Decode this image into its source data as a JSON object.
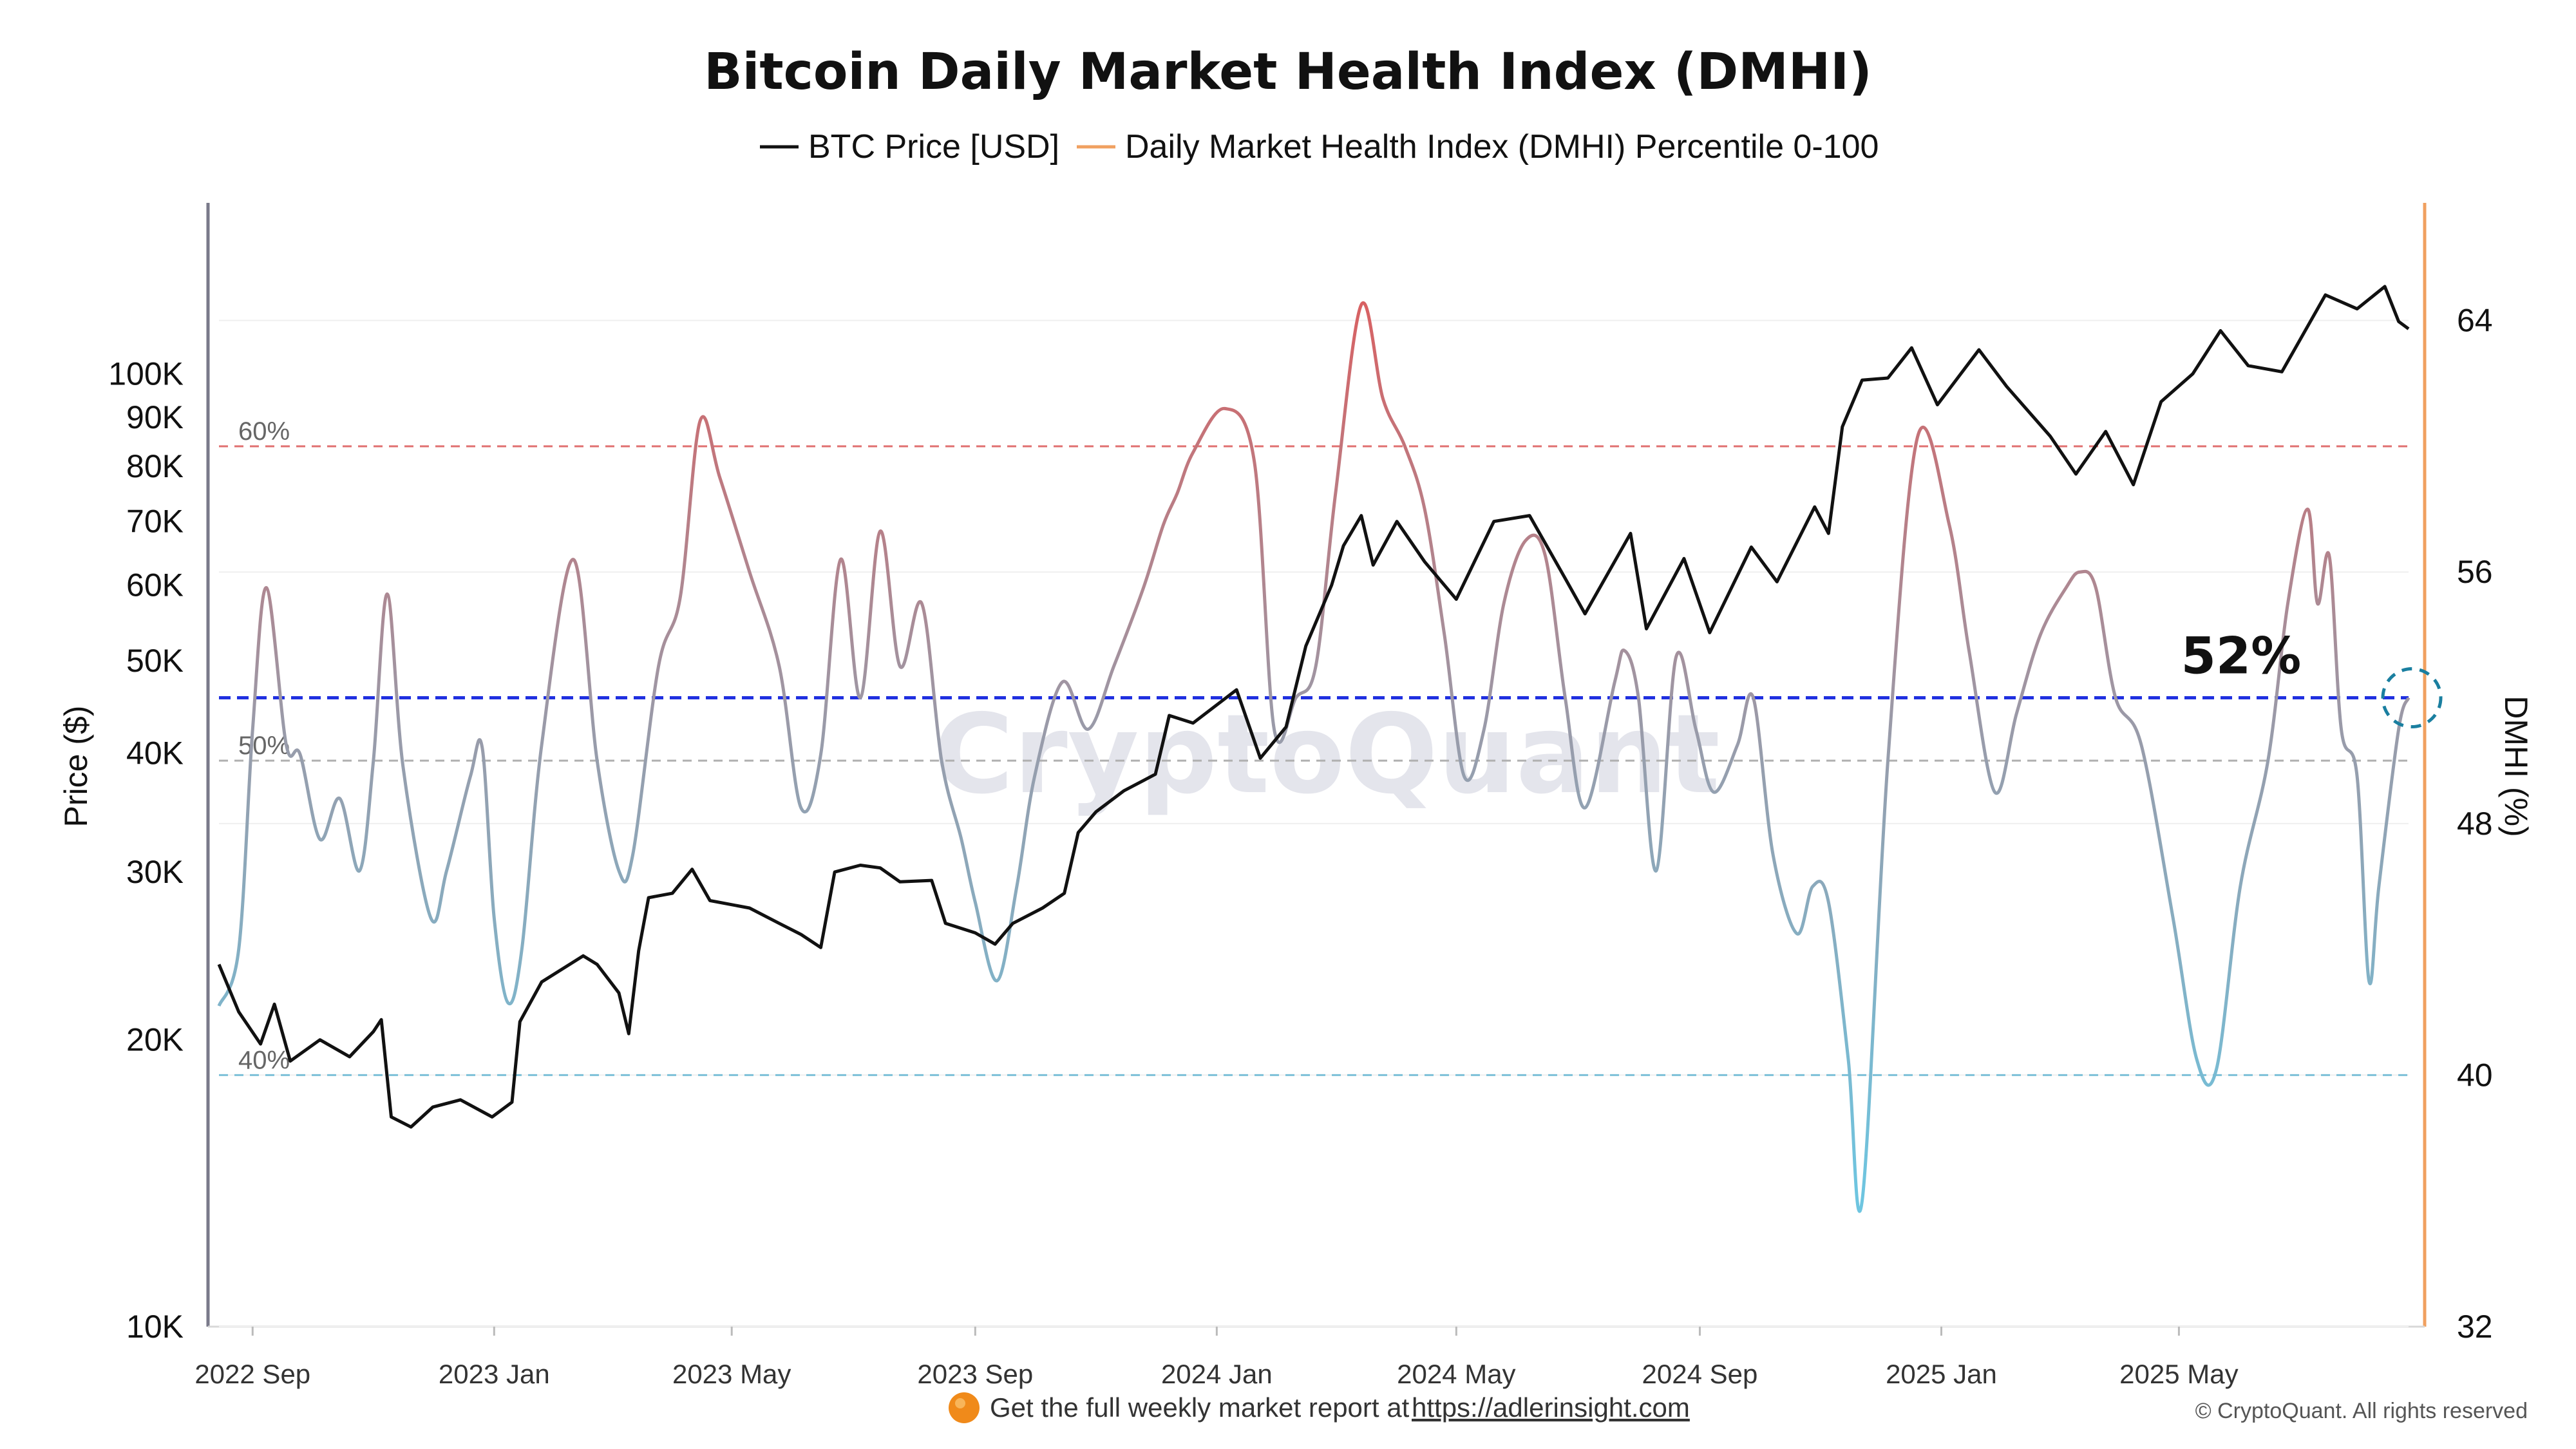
{
  "chart_data": {
    "type": "line",
    "title": "Bitcoin Daily Market Health Index (DMHI)",
    "legend": [
      {
        "label": "BTC Price [USD]",
        "color": "#111111"
      },
      {
        "label": "Daily Market Health Index (DMHI) Percentile 0-100",
        "color": "#f0a060"
      }
    ],
    "x_ticks": [
      "2022 Sep",
      "2023 Jan",
      "2023 May",
      "2023 Sep",
      "2024 Jan",
      "2024 May",
      "2024 Sep",
      "2025 Jan",
      "2025 May"
    ],
    "x_domain": [
      "2022-08-15",
      "2025-08-25"
    ],
    "y_left": {
      "label": "Price ($)",
      "scale": "log",
      "range": [
        10000,
        150000
      ],
      "ticks": [
        {
          "value": 10000,
          "label": "10K"
        },
        {
          "value": 20000,
          "label": "20K"
        },
        {
          "value": 30000,
          "label": "30K"
        },
        {
          "value": 40000,
          "label": "40K"
        },
        {
          "value": 50000,
          "label": "50K"
        },
        {
          "value": 60000,
          "label": "60K"
        },
        {
          "value": 70000,
          "label": "70K"
        },
        {
          "value": 80000,
          "label": "80K"
        },
        {
          "value": 90000,
          "label": "90K"
        },
        {
          "value": 100000,
          "label": "100K"
        }
      ]
    },
    "y_right": {
      "label": "DMHI (%)",
      "range": [
        32,
        66
      ],
      "ticks": [
        {
          "value": 32,
          "label": "32"
        },
        {
          "value": 40,
          "label": "40"
        },
        {
          "value": 48,
          "label": "48"
        },
        {
          "value": 56,
          "label": "56"
        },
        {
          "value": 64,
          "label": "64"
        }
      ]
    },
    "reference_lines": [
      {
        "value": 60,
        "label": "60%",
        "color": "#e07070"
      },
      {
        "value": 50,
        "label": "50%",
        "color": "#b0b0b0"
      },
      {
        "value": 40,
        "label": "40%",
        "color": "#7cc0d8"
      }
    ],
    "current_line": {
      "value": 52,
      "label": "52%",
      "color": "#2030e0"
    },
    "series": [
      {
        "name": "BTC Price [USD]",
        "axis": "left",
        "color": "#111111",
        "points": [
          [
            "2022-08-15",
            24000
          ],
          [
            "2022-08-25",
            21400
          ],
          [
            "2022-09-05",
            19800
          ],
          [
            "2022-09-12",
            21800
          ],
          [
            "2022-09-20",
            19000
          ],
          [
            "2022-10-05",
            20000
          ],
          [
            "2022-10-20",
            19200
          ],
          [
            "2022-11-01",
            20400
          ],
          [
            "2022-11-05",
            21000
          ],
          [
            "2022-11-10",
            16600
          ],
          [
            "2022-11-20",
            16200
          ],
          [
            "2022-12-01",
            17000
          ],
          [
            "2022-12-15",
            17300
          ],
          [
            "2022-12-31",
            16600
          ],
          [
            "2023-01-10",
            17200
          ],
          [
            "2023-01-14",
            20900
          ],
          [
            "2023-01-25",
            23000
          ],
          [
            "2023-02-15",
            24500
          ],
          [
            "2023-02-22",
            24000
          ],
          [
            "2023-03-05",
            22400
          ],
          [
            "2023-03-10",
            20300
          ],
          [
            "2023-03-15",
            24800
          ],
          [
            "2023-03-20",
            28200
          ],
          [
            "2023-04-01",
            28500
          ],
          [
            "2023-04-11",
            30200
          ],
          [
            "2023-04-20",
            28000
          ],
          [
            "2023-05-10",
            27500
          ],
          [
            "2023-05-25",
            26500
          ],
          [
            "2023-06-05",
            25800
          ],
          [
            "2023-06-15",
            25000
          ],
          [
            "2023-06-22",
            30000
          ],
          [
            "2023-07-05",
            30500
          ],
          [
            "2023-07-15",
            30300
          ],
          [
            "2023-07-25",
            29300
          ],
          [
            "2023-08-10",
            29400
          ],
          [
            "2023-08-17",
            26500
          ],
          [
            "2023-09-01",
            25900
          ],
          [
            "2023-09-11",
            25200
          ],
          [
            "2023-09-20",
            26500
          ],
          [
            "2023-10-05",
            27500
          ],
          [
            "2023-10-16",
            28500
          ],
          [
            "2023-10-23",
            33000
          ],
          [
            "2023-11-01",
            34700
          ],
          [
            "2023-11-15",
            36500
          ],
          [
            "2023-12-01",
            38000
          ],
          [
            "2023-12-08",
            43800
          ],
          [
            "2023-12-20",
            43000
          ],
          [
            "2024-01-11",
            46600
          ],
          [
            "2024-01-23",
            39500
          ],
          [
            "2024-02-05",
            42600
          ],
          [
            "2024-02-15",
            51800
          ],
          [
            "2024-02-28",
            60000
          ],
          [
            "2024-03-05",
            66000
          ],
          [
            "2024-03-14",
            71000
          ],
          [
            "2024-03-20",
            63000
          ],
          [
            "2024-04-01",
            70000
          ],
          [
            "2024-04-15",
            63500
          ],
          [
            "2024-05-01",
            58000
          ],
          [
            "2024-05-20",
            70000
          ],
          [
            "2024-06-07",
            71000
          ],
          [
            "2024-06-25",
            61000
          ],
          [
            "2024-07-05",
            56000
          ],
          [
            "2024-07-28",
            68000
          ],
          [
            "2024-08-05",
            54000
          ],
          [
            "2024-08-24",
            64000
          ],
          [
            "2024-09-06",
            53500
          ],
          [
            "2024-09-27",
            65800
          ],
          [
            "2024-10-10",
            60500
          ],
          [
            "2024-10-29",
            72500
          ],
          [
            "2024-11-05",
            68000
          ],
          [
            "2024-11-12",
            88000
          ],
          [
            "2024-11-22",
            98500
          ],
          [
            "2024-12-05",
            99000
          ],
          [
            "2024-12-17",
            106500
          ],
          [
            "2024-12-30",
            92800
          ],
          [
            "2025-01-20",
            106000
          ],
          [
            "2025-02-03",
            97000
          ],
          [
            "2025-02-25",
            86000
          ],
          [
            "2025-03-10",
            78500
          ],
          [
            "2025-03-25",
            87000
          ],
          [
            "2025-04-08",
            76500
          ],
          [
            "2025-04-22",
            93500
          ],
          [
            "2025-05-08",
            100000
          ],
          [
            "2025-05-22",
            111000
          ],
          [
            "2025-06-05",
            102000
          ],
          [
            "2025-06-22",
            100500
          ],
          [
            "2025-07-14",
            121000
          ],
          [
            "2025-07-30",
            117000
          ],
          [
            "2025-08-13",
            123500
          ],
          [
            "2025-08-20",
            113500
          ],
          [
            "2025-08-25",
            111500
          ]
        ]
      },
      {
        "name": "Daily Market Health Index (DMHI) Percentile 0-100",
        "axis": "right",
        "gradient": {
          "low": "#6ec5e0",
          "mid": "#9a9aa8",
          "high": "#e06060"
        },
        "points": [
          [
            "2022-08-15",
            42.2
          ],
          [
            "2022-08-25",
            44.0
          ],
          [
            "2022-09-01",
            51.0
          ],
          [
            "2022-09-08",
            55.5
          ],
          [
            "2022-09-18",
            50.5
          ],
          [
            "2022-09-25",
            50.2
          ],
          [
            "2022-10-05",
            47.5
          ],
          [
            "2022-10-15",
            48.8
          ],
          [
            "2022-10-25",
            46.5
          ],
          [
            "2022-11-01",
            50.0
          ],
          [
            "2022-11-08",
            55.3
          ],
          [
            "2022-11-16",
            49.8
          ],
          [
            "2022-11-30",
            45.0
          ],
          [
            "2022-12-08",
            46.5
          ],
          [
            "2022-12-20",
            49.5
          ],
          [
            "2022-12-26",
            50.4
          ],
          [
            "2023-01-01",
            45.0
          ],
          [
            "2023-01-08",
            42.3
          ],
          [
            "2023-01-15",
            44.0
          ],
          [
            "2023-01-25",
            50.5
          ],
          [
            "2023-02-10",
            56.4
          ],
          [
            "2023-02-22",
            50.0
          ],
          [
            "2023-03-05",
            46.5
          ],
          [
            "2023-03-12",
            47.0
          ],
          [
            "2023-03-25",
            53.0
          ],
          [
            "2023-04-05",
            55.2
          ],
          [
            "2023-04-15",
            60.8
          ],
          [
            "2023-04-25",
            59.0
          ],
          [
            "2023-05-10",
            56.0
          ],
          [
            "2023-05-25",
            53.0
          ],
          [
            "2023-06-05",
            48.5
          ],
          [
            "2023-06-15",
            50.2
          ],
          [
            "2023-06-25",
            56.4
          ],
          [
            "2023-07-05",
            52.0
          ],
          [
            "2023-07-15",
            57.3
          ],
          [
            "2023-07-25",
            53.0
          ],
          [
            "2023-08-05",
            55.0
          ],
          [
            "2023-08-15",
            50.0
          ],
          [
            "2023-08-25",
            47.5
          ],
          [
            "2023-09-01",
            45.5
          ],
          [
            "2023-09-12",
            43.0
          ],
          [
            "2023-09-22",
            46.0
          ],
          [
            "2023-10-01",
            49.5
          ],
          [
            "2023-10-15",
            52.5
          ],
          [
            "2023-10-28",
            51.0
          ],
          [
            "2023-11-10",
            53.0
          ],
          [
            "2023-11-25",
            55.5
          ],
          [
            "2023-12-05",
            57.5
          ],
          [
            "2023-12-12",
            58.5
          ],
          [
            "2023-12-20",
            59.8
          ],
          [
            "2024-01-05",
            61.2
          ],
          [
            "2024-01-20",
            59.5
          ],
          [
            "2024-01-30",
            51.0
          ],
          [
            "2024-02-10",
            52.0
          ],
          [
            "2024-02-20",
            53.0
          ],
          [
            "2024-03-01",
            58.5
          ],
          [
            "2024-03-14",
            64.5
          ],
          [
            "2024-03-25",
            61.5
          ],
          [
            "2024-04-05",
            60.0
          ],
          [
            "2024-04-15",
            58.0
          ],
          [
            "2024-04-25",
            54.0
          ],
          [
            "2024-05-05",
            49.5
          ],
          [
            "2024-05-15",
            51.0
          ],
          [
            "2024-05-25",
            55.0
          ],
          [
            "2024-06-05",
            57.0
          ],
          [
            "2024-06-15",
            56.5
          ],
          [
            "2024-06-25",
            52.0
          ],
          [
            "2024-07-05",
            48.5
          ],
          [
            "2024-07-20",
            52.5
          ],
          [
            "2024-07-25",
            53.5
          ],
          [
            "2024-08-01",
            52.0
          ],
          [
            "2024-08-10",
            46.5
          ],
          [
            "2024-08-20",
            53.3
          ],
          [
            "2024-08-30",
            51.0
          ],
          [
            "2024-09-08",
            49.0
          ],
          [
            "2024-09-20",
            50.5
          ],
          [
            "2024-09-28",
            52.0
          ],
          [
            "2024-10-08",
            47.0
          ],
          [
            "2024-10-20",
            44.5
          ],
          [
            "2024-10-28",
            46.0
          ],
          [
            "2024-11-05",
            45.5
          ],
          [
            "2024-11-15",
            40.5
          ],
          [
            "2024-11-22",
            36.0
          ],
          [
            "2024-12-05",
            50.0
          ],
          [
            "2024-12-20",
            60.3
          ],
          [
            "2025-01-05",
            57.5
          ],
          [
            "2025-01-15",
            53.5
          ],
          [
            "2025-01-28",
            49.0
          ],
          [
            "2025-02-08",
            51.5
          ],
          [
            "2025-02-20",
            54.0
          ],
          [
            "2025-03-05",
            55.5
          ],
          [
            "2025-03-12",
            56.0
          ],
          [
            "2025-03-20",
            55.5
          ],
          [
            "2025-03-30",
            52.0
          ],
          [
            "2025-04-12",
            50.5
          ],
          [
            "2025-04-28",
            45.0
          ],
          [
            "2025-05-10",
            40.5
          ],
          [
            "2025-05-20",
            40.2
          ],
          [
            "2025-06-01",
            46.0
          ],
          [
            "2025-06-15",
            50.0
          ],
          [
            "2025-06-25",
            55.0
          ],
          [
            "2025-07-05",
            58.0
          ],
          [
            "2025-07-10",
            55.0
          ],
          [
            "2025-07-16",
            56.5
          ],
          [
            "2025-07-22",
            51.0
          ],
          [
            "2025-07-30",
            49.5
          ],
          [
            "2025-08-05",
            43.0
          ],
          [
            "2025-08-10",
            46.0
          ],
          [
            "2025-08-20",
            51.0
          ],
          [
            "2025-08-25",
            52.0
          ]
        ]
      }
    ]
  },
  "watermark": "CryptoQuant",
  "footer": {
    "text": "Get the full weekly market report at",
    "link": "https://adlerinsight.com",
    "copyright": "© CryptoQuant. All rights reserved"
  }
}
